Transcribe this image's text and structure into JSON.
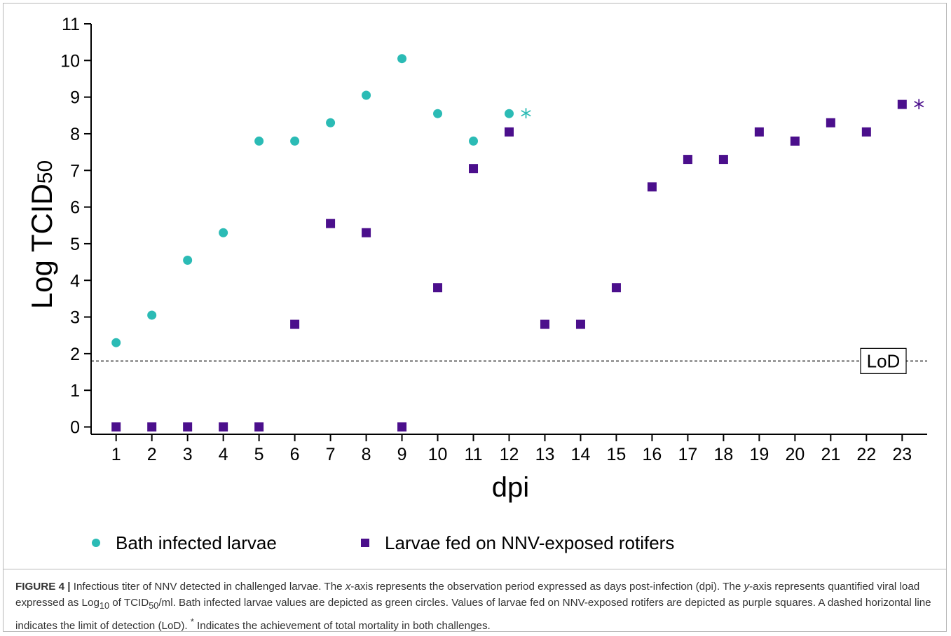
{
  "chart_data": {
    "type": "scatter",
    "xlabel": "dpi",
    "ylabel_main": "Log TCID",
    "ylabel_sub": "50",
    "x_ticks": [
      1,
      2,
      3,
      4,
      5,
      6,
      7,
      8,
      9,
      10,
      11,
      12,
      13,
      14,
      15,
      16,
      17,
      18,
      19,
      20,
      21,
      22,
      23
    ],
    "y_ticks": [
      0,
      1,
      2,
      3,
      4,
      5,
      6,
      7,
      8,
      9,
      10,
      11
    ],
    "xlim": [
      0.3,
      23.7
    ],
    "ylim": [
      -0.2,
      11
    ],
    "lod": {
      "value": 1.8,
      "label": "LoD",
      "style": "dashed"
    },
    "series": [
      {
        "name": "Bath infected larvae",
        "marker": "circle",
        "color": "#2bbbb5",
        "points": [
          [
            1,
            2.3
          ],
          [
            2,
            3.05
          ],
          [
            3,
            4.55
          ],
          [
            4,
            5.3
          ],
          [
            5,
            7.8
          ],
          [
            6,
            7.8
          ],
          [
            7,
            8.3
          ],
          [
            8,
            9.05
          ],
          [
            9,
            10.05
          ],
          [
            10,
            8.55
          ],
          [
            11,
            7.8
          ],
          [
            12,
            8.55
          ]
        ],
        "asterisk_at": [
          12,
          8.55
        ]
      },
      {
        "name": "Larvae fed on NNV-exposed rotifers",
        "marker": "square",
        "color": "#4b0f8c",
        "points": [
          [
            1,
            0
          ],
          [
            2,
            0
          ],
          [
            3,
            0
          ],
          [
            4,
            0
          ],
          [
            5,
            0
          ],
          [
            6,
            2.8
          ],
          [
            7,
            5.55
          ],
          [
            8,
            5.3
          ],
          [
            9,
            0
          ],
          [
            10,
            3.8
          ],
          [
            11,
            7.05
          ],
          [
            12,
            8.05
          ],
          [
            13,
            2.8
          ],
          [
            14,
            2.8
          ],
          [
            15,
            3.8
          ],
          [
            16,
            6.55
          ],
          [
            17,
            7.3
          ],
          [
            18,
            7.3
          ],
          [
            19,
            8.05
          ],
          [
            20,
            7.8
          ],
          [
            21,
            8.3
          ],
          [
            22,
            8.05
          ],
          [
            23,
            8.8
          ]
        ],
        "asterisk_at": [
          23,
          8.8
        ]
      }
    ],
    "asterisk_text": "*",
    "grid": false,
    "legend_position": "bottom"
  },
  "caption": {
    "label": "FIGURE 4 |",
    "parts": [
      " Infectious titer of NNV detected in challenged larvae. The ",
      "x",
      "-axis represents the observation period expressed as days post-infection (dpi). The ",
      "y",
      "-axis represents quantified viral load expressed as Log",
      "10",
      " of TCID",
      "50",
      "/ml. Bath infected larvae values are depicted as green circles. Values of larvae fed on NNV-exposed rotifers are depicted as purple squares. A dashed horizontal line indicates the limit of detection (LoD). ",
      "*",
      " Indicates the achievement of total mortality in both challenges."
    ]
  }
}
